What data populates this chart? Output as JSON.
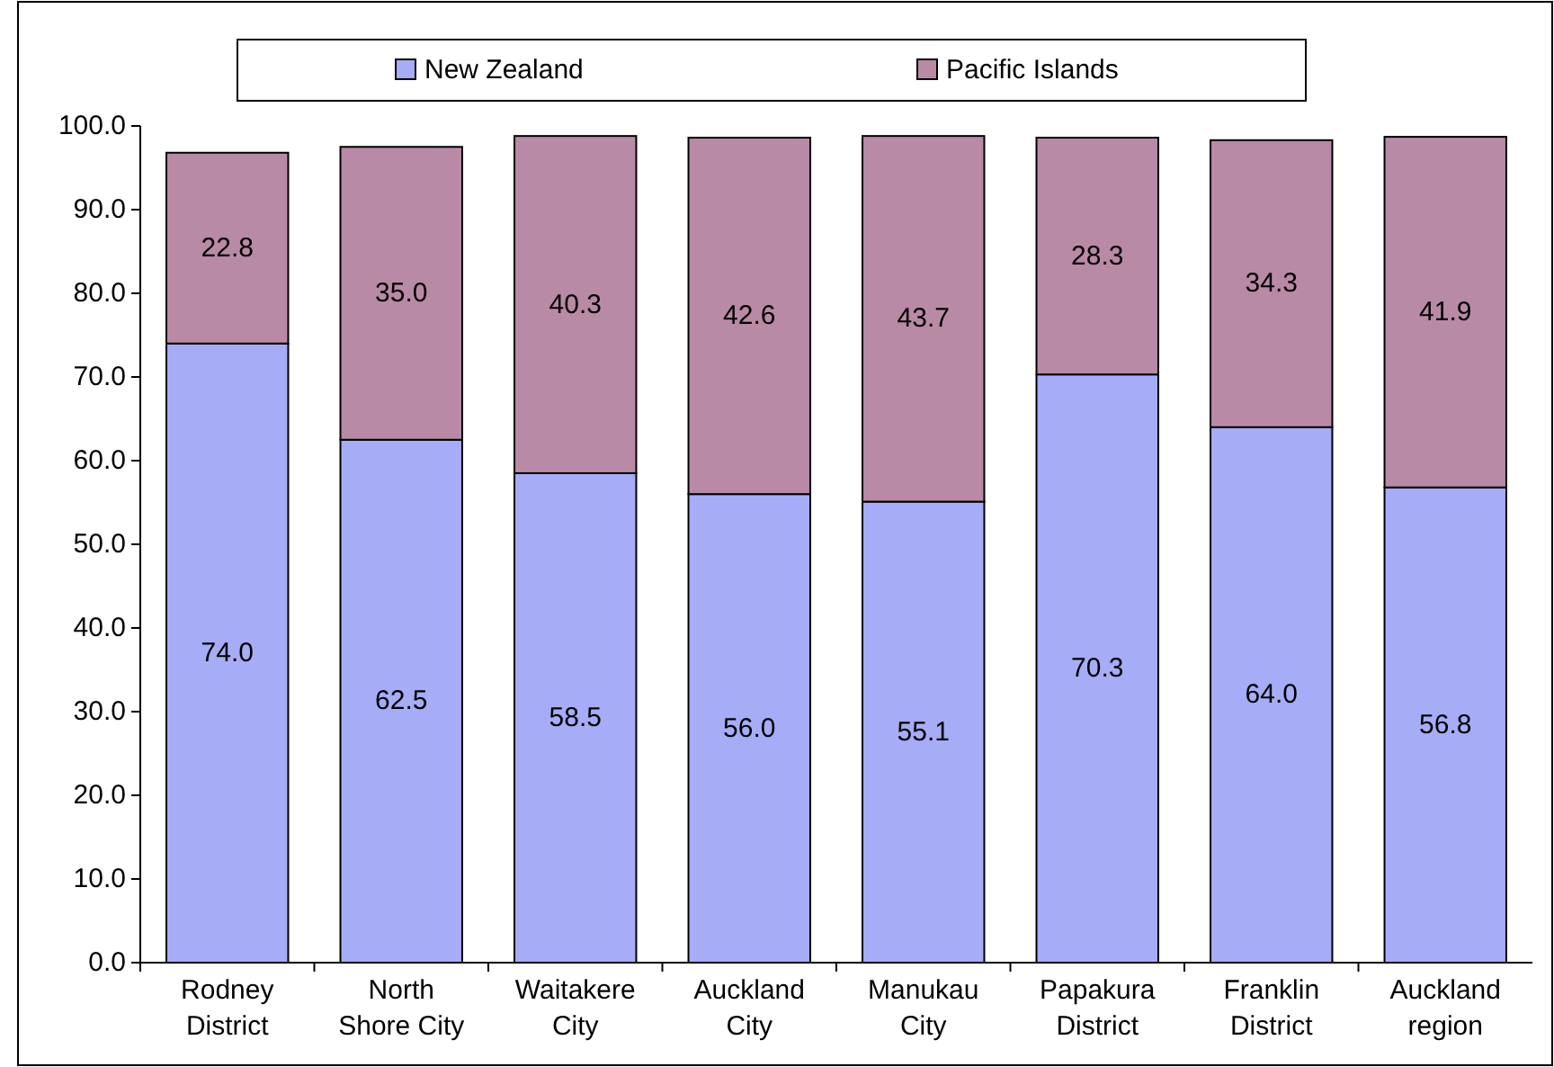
{
  "chart_data": {
    "type": "bar",
    "stacked": true,
    "categories": [
      "Rodney District",
      "North Shore City",
      "Waitakere City",
      "Auckland City",
      "Manukau City",
      "Papakura District",
      "Franklin District",
      "Auckland region"
    ],
    "series": [
      {
        "name": "New Zealand",
        "color": "#a6acf6",
        "values": [
          74.0,
          62.5,
          58.5,
          56.0,
          55.1,
          70.3,
          64.0,
          56.8
        ],
        "value_labels": [
          "74.0",
          "62.5",
          "58.5",
          "56.0",
          "55.1",
          "70.3",
          "64.0",
          "56.8"
        ]
      },
      {
        "name": "Pacific Islands",
        "color": "#b98aa6",
        "values": [
          22.8,
          35.0,
          40.3,
          42.6,
          43.7,
          28.3,
          34.3,
          41.9
        ],
        "value_labels": [
          "22.8",
          "35.0",
          "40.3",
          "42.6",
          "43.7",
          "28.3",
          "34.3",
          "41.9"
        ]
      }
    ],
    "ylim": [
      0,
      100
    ],
    "yticks": [
      {
        "value": 0,
        "label": "0.0"
      },
      {
        "value": 10,
        "label": "10.0"
      },
      {
        "value": 20,
        "label": "20.0"
      },
      {
        "value": 30,
        "label": "30.0"
      },
      {
        "value": 40,
        "label": "40.0"
      },
      {
        "value": 50,
        "label": "50.0"
      },
      {
        "value": 60,
        "label": "60.0"
      },
      {
        "value": 70,
        "label": "70.0"
      },
      {
        "value": 80,
        "label": "80.0"
      },
      {
        "value": 90,
        "label": "90.0"
      },
      {
        "value": 100,
        "label": "100.0"
      }
    ],
    "legend": "top"
  }
}
